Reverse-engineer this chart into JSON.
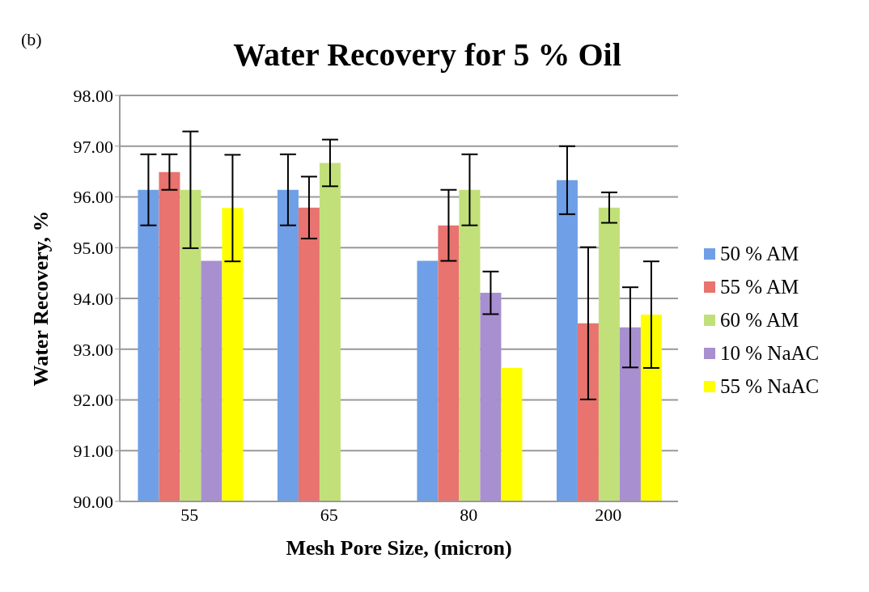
{
  "chart_data": {
    "type": "bar",
    "title": "Water Recovery for 5 % Oil",
    "xlabel": "Mesh Pore Size, (micron)",
    "ylabel": "Water Recovery, %",
    "annotations": [
      "(b)"
    ],
    "categories": [
      "55",
      "65",
      "80",
      "200"
    ],
    "series": [
      {
        "name": "50 % AM",
        "color": "#6f9fe6",
        "values": [
          96.14,
          96.14,
          94.74,
          96.33
        ],
        "errors": [
          0.7,
          0.7,
          0,
          0.67
        ]
      },
      {
        "name": "55 % AM",
        "color": "#e8736f",
        "values": [
          96.49,
          95.79,
          95.44,
          93.51
        ],
        "errors": [
          0.35,
          0.61,
          0.7,
          1.5
        ]
      },
      {
        "name": "60 % AM",
        "color": "#c2e07a",
        "values": [
          96.14,
          96.67,
          96.14,
          95.79
        ],
        "errors": [
          1.15,
          0.46,
          0.7,
          0.3
        ]
      },
      {
        "name": "10 % NaAC",
        "color": "#a88fd0",
        "values": [
          94.74,
          null,
          94.11,
          93.43
        ],
        "errors": [
          0,
          null,
          0.42,
          0.79
        ]
      },
      {
        "name": "55 % NaAC",
        "color": "#ffff00",
        "values": [
          95.78,
          null,
          92.63,
          93.68
        ],
        "errors": [
          1.05,
          null,
          0,
          1.05
        ]
      }
    ],
    "ylim": [
      90,
      98
    ],
    "yticks": [
      {
        "value": 90,
        "label": "90.00"
      },
      {
        "value": 91,
        "label": "91.00"
      },
      {
        "value": 92,
        "label": "92.00"
      },
      {
        "value": 93,
        "label": "93.00"
      },
      {
        "value": 94,
        "label": "94.00"
      },
      {
        "value": 95,
        "label": "95.00"
      },
      {
        "value": 96,
        "label": "96.00"
      },
      {
        "value": 97,
        "label": "97.00"
      },
      {
        "value": 98,
        "label": "98.00"
      }
    ],
    "grid": "y",
    "legend": "right"
  }
}
